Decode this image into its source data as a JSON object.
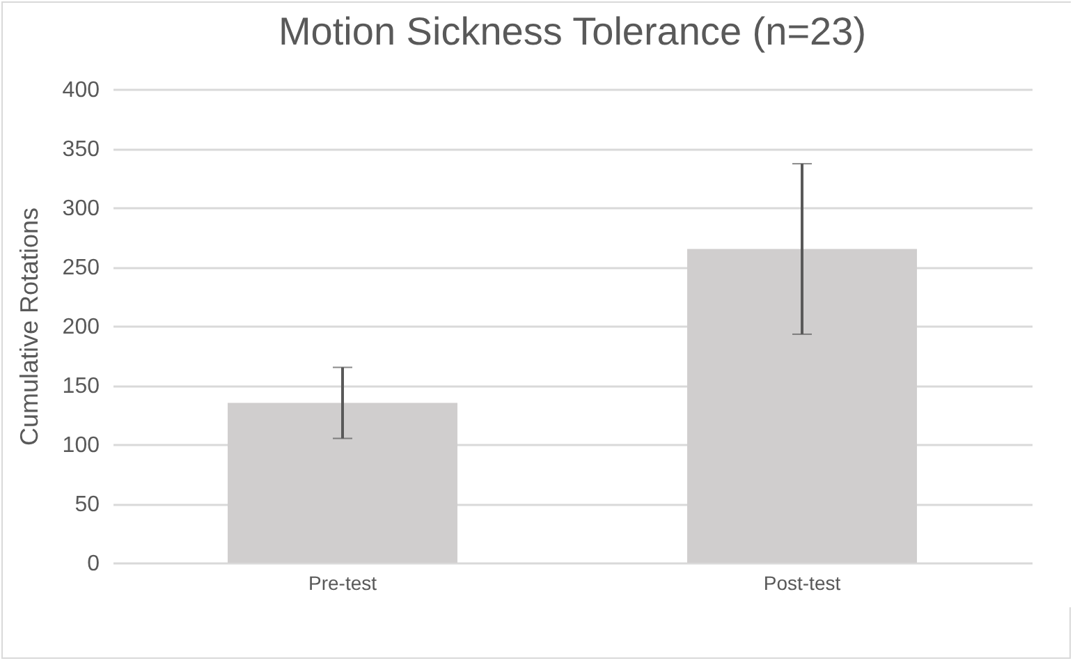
{
  "chart_data": {
    "type": "bar",
    "title": "Motion Sickness Tolerance (n=23)",
    "ylabel": "Cumulative Rotations",
    "categories": [
      "Pre-test",
      "Post-test"
    ],
    "values": [
      135,
      265
    ],
    "color": "#d0cece",
    "errors": [
      30,
      72
    ],
    "ylim": [
      0,
      400
    ],
    "yticks": [
      0,
      50,
      100,
      150,
      200,
      250,
      300,
      350,
      400
    ],
    "grid": "y"
  }
}
